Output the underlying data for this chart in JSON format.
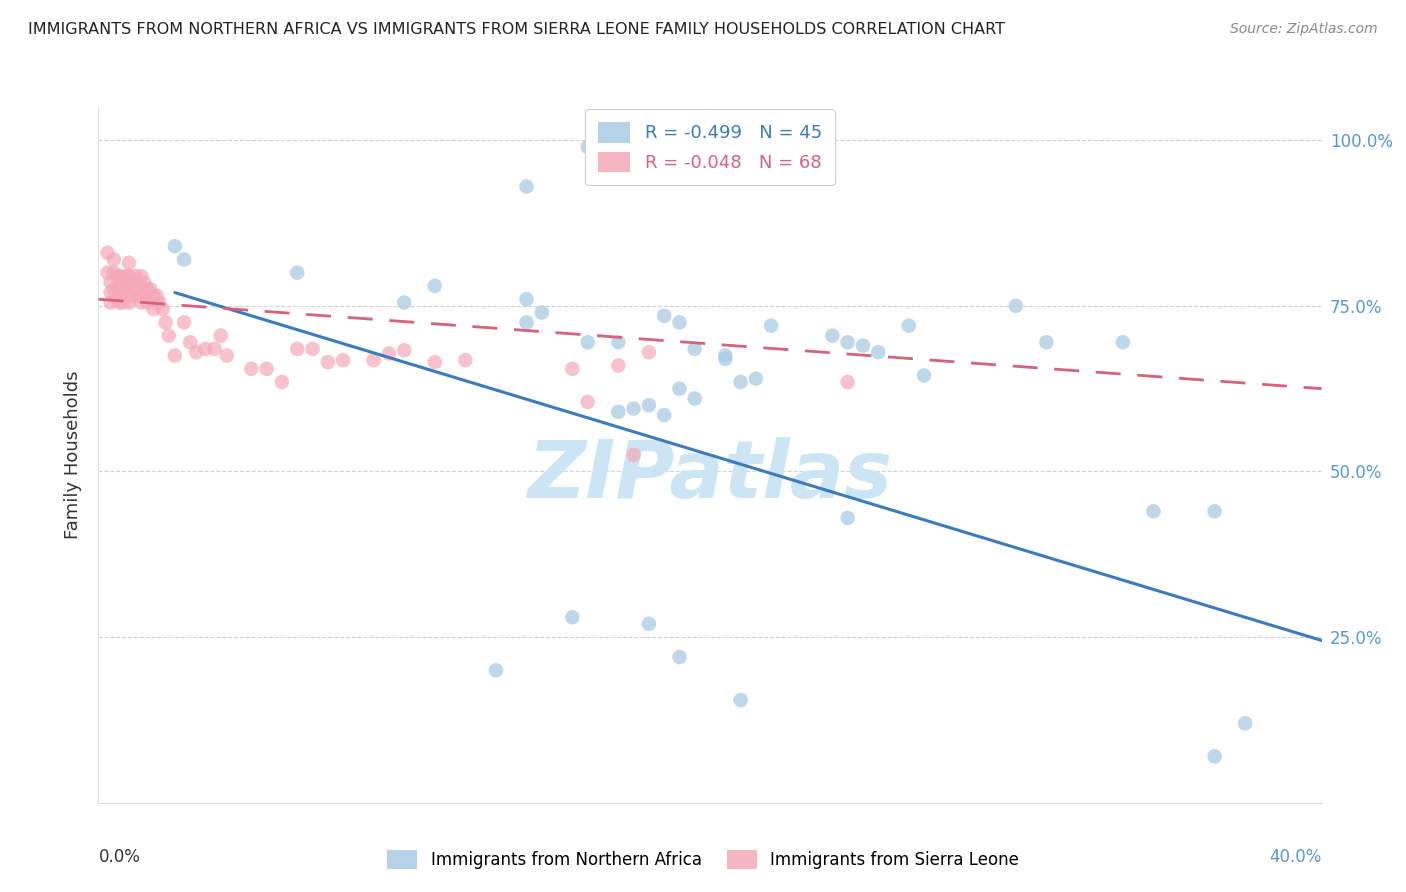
{
  "title": "IMMIGRANTS FROM NORTHERN AFRICA VS IMMIGRANTS FROM SIERRA LEONE FAMILY HOUSEHOLDS CORRELATION CHART",
  "source": "Source: ZipAtlas.com",
  "ylabel": "Family Households",
  "x_range": [
    0.0,
    0.4
  ],
  "y_range": [
    0.0,
    1.05
  ],
  "legend_r1": "R = -0.499",
  "legend_n1": "N = 45",
  "legend_r2": "R = -0.048",
  "legend_n2": "N = 68",
  "blue_color": "#a8cce4",
  "pink_color": "#f4a8b8",
  "trendline_blue": "#3a7abf",
  "trendline_pink": "#d9607a",
  "watermark": "ZIPatlas",
  "blue_scatter_x": [
    0.16,
    0.14,
    0.025,
    0.065,
    0.028,
    0.11,
    0.14,
    0.1,
    0.145,
    0.14,
    0.185,
    0.19,
    0.22,
    0.16,
    0.17,
    0.24,
    0.245,
    0.255,
    0.265,
    0.3,
    0.335,
    0.205,
    0.205,
    0.215,
    0.21,
    0.19,
    0.175,
    0.17,
    0.185,
    0.18,
    0.195,
    0.195,
    0.27,
    0.25,
    0.31,
    0.345,
    0.365,
    0.245,
    0.18,
    0.19,
    0.21,
    0.375,
    0.365,
    0.155,
    0.13
  ],
  "blue_scatter_y": [
    0.99,
    0.93,
    0.84,
    0.8,
    0.82,
    0.78,
    0.76,
    0.755,
    0.74,
    0.725,
    0.735,
    0.725,
    0.72,
    0.695,
    0.695,
    0.705,
    0.695,
    0.68,
    0.72,
    0.75,
    0.695,
    0.675,
    0.67,
    0.64,
    0.635,
    0.625,
    0.595,
    0.59,
    0.585,
    0.6,
    0.61,
    0.685,
    0.645,
    0.69,
    0.695,
    0.44,
    0.44,
    0.43,
    0.27,
    0.22,
    0.155,
    0.12,
    0.07,
    0.28,
    0.2
  ],
  "pink_scatter_x": [
    0.003,
    0.003,
    0.004,
    0.004,
    0.004,
    0.005,
    0.005,
    0.005,
    0.006,
    0.006,
    0.006,
    0.007,
    0.007,
    0.007,
    0.008,
    0.008,
    0.008,
    0.009,
    0.009,
    0.01,
    0.01,
    0.01,
    0.011,
    0.011,
    0.012,
    0.012,
    0.013,
    0.013,
    0.014,
    0.014,
    0.015,
    0.015,
    0.016,
    0.016,
    0.017,
    0.018,
    0.018,
    0.019,
    0.02,
    0.021,
    0.022,
    0.023,
    0.025,
    0.028,
    0.03,
    0.032,
    0.035,
    0.038,
    0.04,
    0.042,
    0.05,
    0.055,
    0.06,
    0.065,
    0.07,
    0.075,
    0.08,
    0.09,
    0.095,
    0.1,
    0.11,
    0.12,
    0.155,
    0.16,
    0.17,
    0.175,
    0.18,
    0.245
  ],
  "pink_scatter_y": [
    0.83,
    0.8,
    0.785,
    0.77,
    0.755,
    0.82,
    0.8,
    0.775,
    0.795,
    0.775,
    0.76,
    0.795,
    0.775,
    0.755,
    0.79,
    0.775,
    0.755,
    0.795,
    0.775,
    0.815,
    0.795,
    0.755,
    0.785,
    0.765,
    0.795,
    0.775,
    0.785,
    0.765,
    0.795,
    0.755,
    0.785,
    0.765,
    0.775,
    0.755,
    0.775,
    0.765,
    0.745,
    0.765,
    0.755,
    0.745,
    0.725,
    0.705,
    0.675,
    0.725,
    0.695,
    0.68,
    0.685,
    0.685,
    0.705,
    0.675,
    0.655,
    0.655,
    0.635,
    0.685,
    0.685,
    0.665,
    0.668,
    0.668,
    0.678,
    0.683,
    0.665,
    0.668,
    0.655,
    0.605,
    0.66,
    0.525,
    0.68,
    0.635
  ],
  "blue_trendline_x": [
    0.025,
    0.4
  ],
  "blue_trendline_y": [
    0.77,
    0.245
  ],
  "pink_trendline_x": [
    0.0,
    0.4
  ],
  "pink_trendline_y": [
    0.76,
    0.625
  ]
}
